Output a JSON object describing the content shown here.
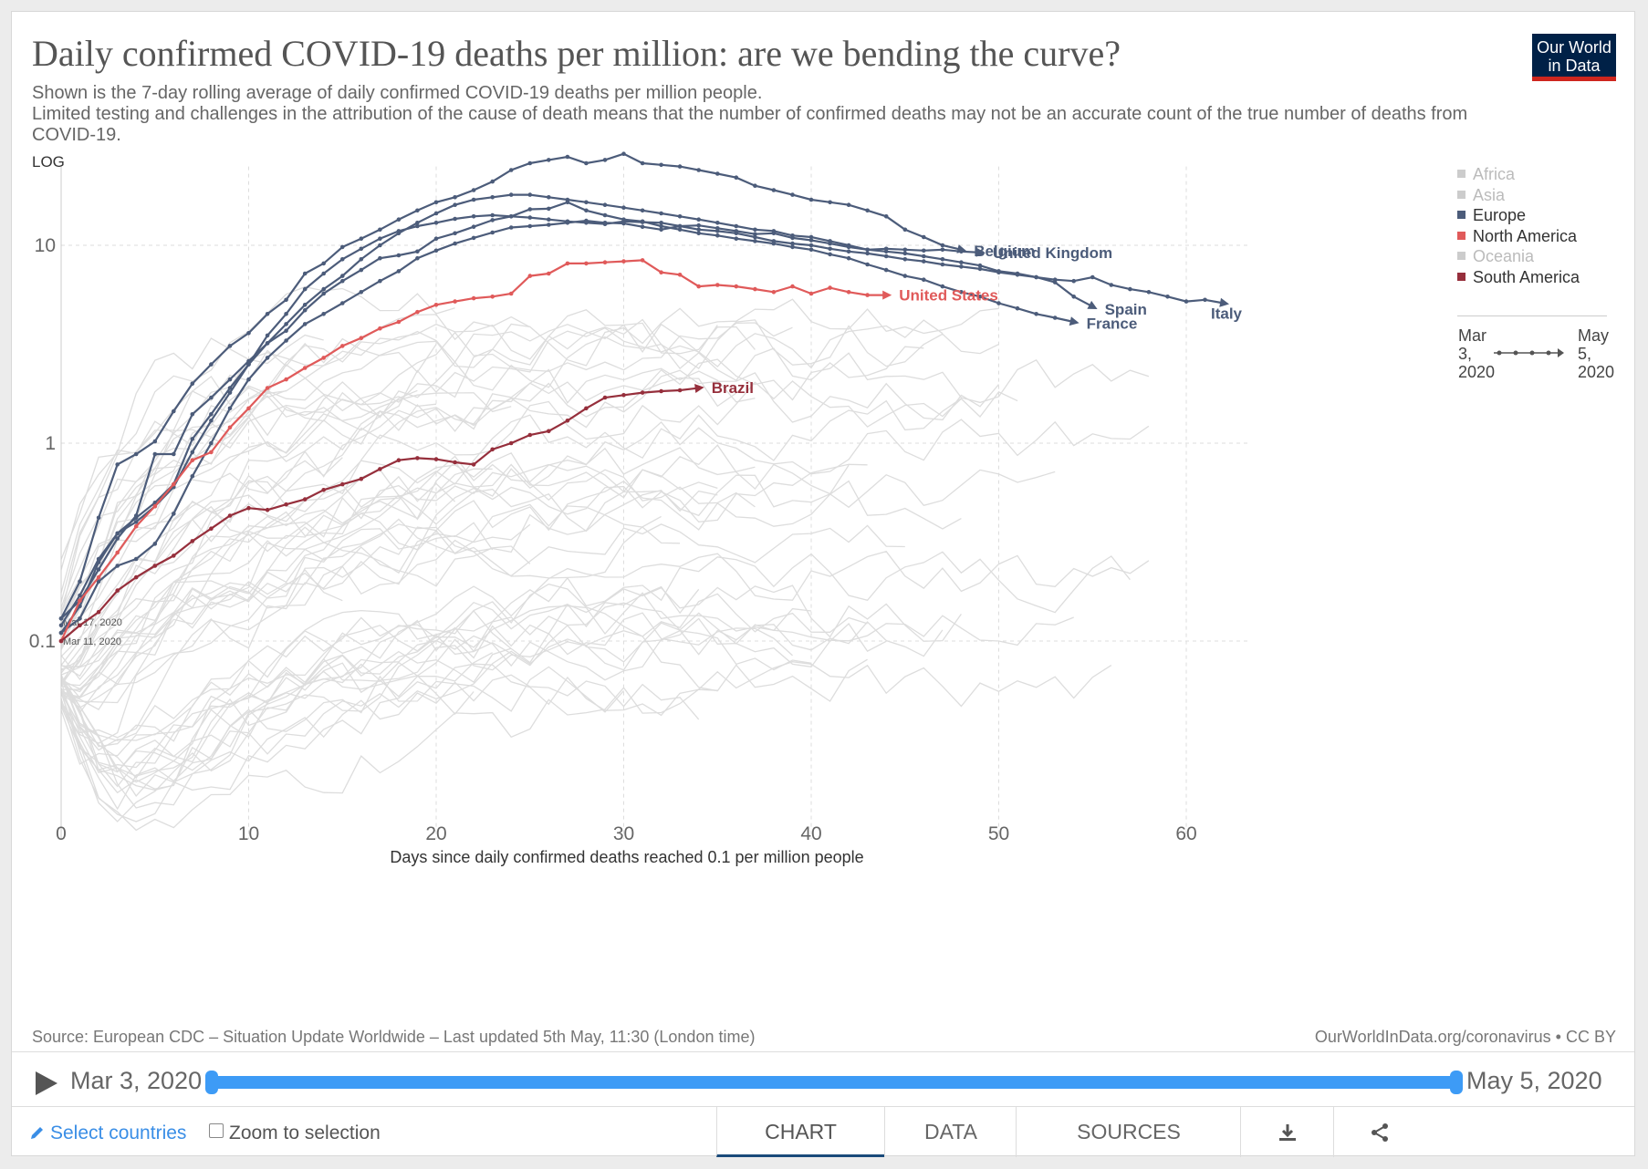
{
  "title": "Daily confirmed COVID-19 deaths per million: are we bending the curve?",
  "subtitle_1": "Shown is the 7-day rolling average of daily confirmed COVID-19 deaths per million people.",
  "subtitle_2": "Limited testing and challenges in the attribution of the cause of death means that the number of confirmed deaths may not be an accurate count of the true number of deaths from COVID-19.",
  "logo": "Our World in Data",
  "log_toggle": "LOG",
  "source": "Source: European CDC – Situation Update Worldwide – Last updated 5th May, 11:30 (London time)",
  "credit": "OurWorldInData.org/coronavirus • CC BY",
  "legend": [
    {
      "label": "Africa",
      "color": "#cccccc",
      "faded": true
    },
    {
      "label": "Asia",
      "color": "#cccccc",
      "faded": true
    },
    {
      "label": "Europe",
      "color": "#4c5c7a",
      "faded": false
    },
    {
      "label": "North America",
      "color": "#e05a5a",
      "faded": false
    },
    {
      "label": "Oceania",
      "color": "#cccccc",
      "faded": true
    },
    {
      "label": "South America",
      "color": "#962f3c",
      "faded": false
    }
  ],
  "mini_timeline": {
    "start": "Mar 3, 2020",
    "end": "May 5, 2020"
  },
  "timeline": {
    "start": "Mar 3, 2020",
    "end": "May 5, 2020"
  },
  "controls": {
    "select_countries": "Select countries",
    "zoom": "Zoom to selection"
  },
  "tabs": [
    "CHART",
    "DATA",
    "SOURCES"
  ],
  "icons": {
    "download": "download-icon",
    "share": "share-icon",
    "play": "play-icon",
    "edit": "pencil-icon"
  },
  "chart_data": {
    "type": "line",
    "title": "Daily confirmed COVID-19 deaths per million: are we bending the curve?",
    "xlabel": "Days since daily confirmed deaths reached 0.1 per million people",
    "ylabel": "",
    "yscale": "log",
    "xlim": [
      0,
      63
    ],
    "ylim": [
      0.01,
      25
    ],
    "x_ticks": [
      0,
      10,
      20,
      30,
      40,
      50,
      60
    ],
    "y_ticks": [
      {
        "value": 0.1,
        "label": "0.1"
      },
      {
        "value": 1,
        "label": "1"
      },
      {
        "value": 10,
        "label": "10"
      }
    ],
    "annotations": [
      {
        "text": "Mar 17, 2020",
        "x": 0,
        "y": 0.125
      },
      {
        "text": "Mar 11, 2020",
        "x": 0,
        "y": 0.1
      }
    ],
    "series": [
      {
        "name": "Belgium",
        "color": "#4c5c7a",
        "x0": 0,
        "values": [
          0.13,
          0.2,
          0.42,
          0.78,
          0.88,
          1.02,
          1.45,
          2.0,
          2.5,
          3.1,
          3.6,
          4.5,
          5.3,
          7.2,
          8.1,
          9.8,
          10.8,
          12,
          13.5,
          15,
          16.5,
          17.5,
          19,
          21,
          24,
          26,
          27,
          28,
          26,
          27,
          29,
          26,
          25.5,
          25,
          24,
          23,
          22,
          20,
          19,
          18,
          17,
          16.5,
          16,
          15,
          14,
          12,
          11,
          10,
          9.5
        ]
      },
      {
        "name": "United Kingdom",
        "color": "#4c5c7a",
        "x0": 0,
        "values": [
          0.12,
          0.17,
          0.26,
          0.35,
          0.42,
          0.5,
          0.62,
          1.05,
          1.4,
          1.9,
          2.5,
          3.2,
          4.0,
          5.0,
          6.0,
          7.0,
          8.5,
          10,
          11.5,
          13,
          14.5,
          16,
          17,
          17.5,
          18,
          18,
          17.5,
          17,
          16.5,
          16,
          15.5,
          15,
          14.5,
          14,
          13.5,
          13,
          12.5,
          12,
          11.8,
          11.2,
          11,
          10.5,
          10,
          9.5,
          9.6,
          9.5,
          9.4,
          9.5,
          9.3,
          9.2
        ]
      },
      {
        "name": "Spain",
        "color": "#4c5c7a",
        "x0": 0,
        "values": [
          0.11,
          0.15,
          0.25,
          0.35,
          0.4,
          0.48,
          0.6,
          0.9,
          1.3,
          1.8,
          2.5,
          3.5,
          4.5,
          6.0,
          7.2,
          8.5,
          9.6,
          10.8,
          11.8,
          12.5,
          13,
          13.6,
          14,
          14.2,
          14,
          13.8,
          13.5,
          13.2,
          13,
          12.8,
          13.2,
          13.1,
          13,
          12.5,
          12,
          11.8,
          11.5,
          11,
          10.5,
          10.2,
          10,
          9.6,
          9.3,
          9.1,
          8.8,
          8.5,
          8.3,
          8,
          7.8,
          7.6,
          7.3,
          7.1,
          6.9,
          6.5,
          5.5,
          4.9
        ]
      },
      {
        "name": "Italy",
        "color": "#4c5c7a",
        "x0": 0,
        "values": [
          0.11,
          0.13,
          0.2,
          0.24,
          0.26,
          0.31,
          0.44,
          0.68,
          1.0,
          1.5,
          2.1,
          2.7,
          3.3,
          4.0,
          4.5,
          5.1,
          5.8,
          6.6,
          7.4,
          8.6,
          9.4,
          10.2,
          10.9,
          11.6,
          12.3,
          12.5,
          12.7,
          13,
          13.3,
          13,
          12.9,
          12.4,
          12,
          12.5,
          12.6,
          12.2,
          11.8,
          11.4,
          11.5,
          10.9,
          10.6,
          10.2,
          9.8,
          9.5,
          9.3,
          9.1,
          8.8,
          8.5,
          8.2,
          7.9,
          7.4,
          7.2,
          6.9,
          6.7,
          6.6,
          6.9,
          6.3,
          6.0,
          5.8,
          5.5,
          5.2,
          5.3,
          5.1
        ]
      },
      {
        "name": "France",
        "color": "#4c5c7a",
        "x0": 0,
        "values": [
          0.13,
          0.16,
          0.23,
          0.33,
          0.43,
          0.88,
          0.88,
          1.4,
          1.7,
          2.1,
          2.6,
          3.2,
          3.7,
          4.7,
          5.7,
          6.6,
          7.5,
          8.6,
          8.9,
          9.3,
          10.8,
          11.5,
          12.4,
          13.4,
          14,
          15.2,
          15.3,
          16.5,
          15,
          14.2,
          13.5,
          13.2,
          12.5,
          12,
          11.5,
          11.2,
          10.8,
          10.5,
          10.2,
          9.8,
          9.5,
          9.0,
          8.6,
          8.0,
          7.5,
          7.0,
          6.7,
          6.2,
          5.8,
          5.5,
          5.1,
          4.8,
          4.5,
          4.3,
          4.1
        ]
      },
      {
        "name": "United States",
        "color": "#e05a5a",
        "x0": 0,
        "values": [
          0.1,
          0.16,
          0.21,
          0.28,
          0.38,
          0.48,
          0.62,
          0.82,
          0.9,
          1.2,
          1.5,
          1.9,
          2.1,
          2.4,
          2.7,
          3.1,
          3.4,
          3.8,
          4.1,
          4.6,
          5.0,
          5.2,
          5.4,
          5.5,
          5.7,
          7.0,
          7.2,
          8.1,
          8.1,
          8.2,
          8.3,
          8.4,
          7.3,
          7.1,
          6.2,
          6.3,
          6.2,
          6.0,
          5.8,
          6.2,
          5.7,
          6.1,
          5.8,
          5.6,
          5.6
        ]
      },
      {
        "name": "Brazil",
        "color": "#962f3c",
        "x0": 0,
        "values": [
          0.1,
          0.12,
          0.14,
          0.18,
          0.21,
          0.24,
          0.27,
          0.32,
          0.37,
          0.43,
          0.47,
          0.46,
          0.49,
          0.52,
          0.58,
          0.62,
          0.66,
          0.74,
          0.82,
          0.84,
          0.83,
          0.8,
          0.78,
          0.93,
          1.0,
          1.1,
          1.15,
          1.3,
          1.5,
          1.7,
          1.75,
          1.8,
          1.83,
          1.85,
          1.9
        ]
      }
    ],
    "series_labels": [
      {
        "name": "United Kingdom",
        "text": "United Kingdom"
      },
      {
        "name": "Belgium",
        "text": "Belgium"
      },
      {
        "name": "United States",
        "text": "United States"
      },
      {
        "name": "Spain",
        "text": "Spain"
      },
      {
        "name": "Italy",
        "text": "Italy"
      },
      {
        "name": "France",
        "text": "France"
      },
      {
        "name": "Brazil",
        "text": "Brazil"
      }
    ],
    "grid": true,
    "legend_position": "right",
    "background_series_color": "#dddddd"
  }
}
